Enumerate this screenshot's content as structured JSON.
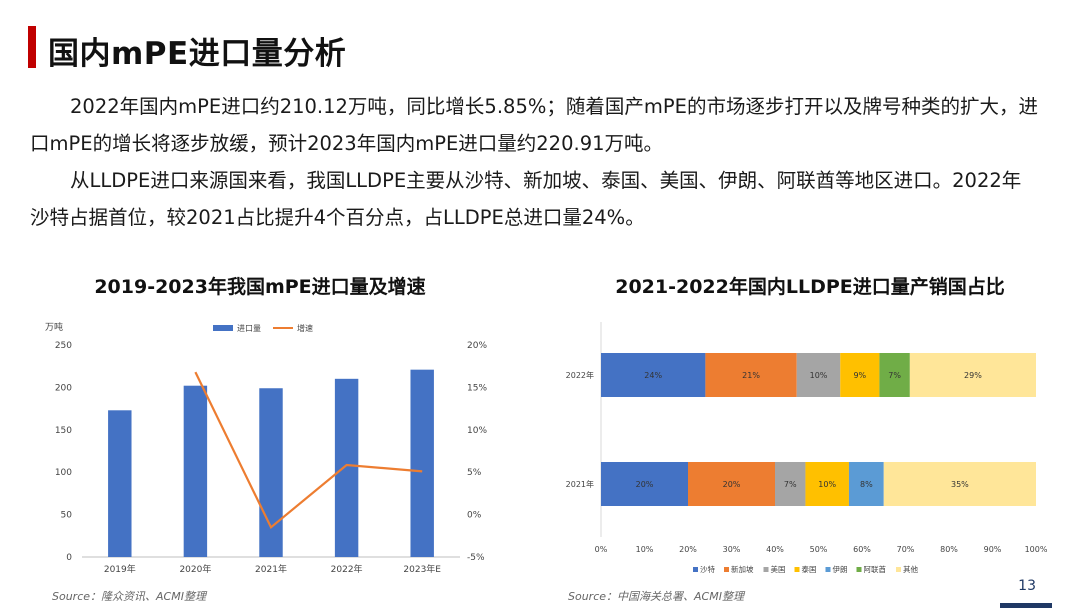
{
  "title": "国内mPE进口量分析",
  "paragraphs": [
    "2022年国内mPE进口约210.12万吨，同比增长5.85%；随着国产mPE的市场逐步打开以及牌号种类的扩大，进口mPE的增长将逐步放缓，预计2023年国内mPE进口量约220.91万吨。",
    "从LLDPE进口来源国来看，我国LLDPE主要从沙特、新加坡、泰国、美国、伊朗、阿联酋等地区进口。2022年沙特占据首位，较2021占比提升4个百分点，占LLDPE总进口量24%。"
  ],
  "chart_data": [
    {
      "type": "bar",
      "title": "2019-2023年我国mPE进口量及增速",
      "y_unit_label": "万吨",
      "categories": [
        "2019年",
        "2020年",
        "2021年",
        "2022年",
        "2023年E"
      ],
      "series": [
        {
          "name": "进口量",
          "type": "bar",
          "axis": "left",
          "values": [
            173,
            202,
            199,
            210.12,
            220.91
          ],
          "color": "#4472c4"
        },
        {
          "name": "增速",
          "type": "line",
          "axis": "right",
          "values": [
            null,
            16.8,
            -1.5,
            5.85,
            5.1
          ],
          "color": "#ed7d31"
        }
      ],
      "ylim": [
        0,
        250
      ],
      "yticks": [
        "0",
        "50",
        "100",
        "150",
        "200",
        "250"
      ],
      "y2lim": [
        -5,
        20
      ],
      "y2ticks": [
        "-5%",
        "0%",
        "5%",
        "10%",
        "15%",
        "20%"
      ],
      "legend_position": "top"
    },
    {
      "type": "bar",
      "orientation": "horizontal",
      "stacked": true,
      "title": "2021-2022年国内LLDPE进口量产销国占比",
      "categories": [
        "2022年",
        "2021年"
      ],
      "series": [
        {
          "name": "沙特",
          "values": [
            24,
            20
          ],
          "labels": [
            "24%",
            "20%"
          ],
          "color": "#4472c4"
        },
        {
          "name": "新加坡",
          "values": [
            21,
            20
          ],
          "labels": [
            "21%",
            "20%"
          ],
          "color": "#ed7d31"
        },
        {
          "name": "美国",
          "values": [
            10,
            7
          ],
          "labels": [
            "10%",
            "7%"
          ],
          "color": "#a5a5a5"
        },
        {
          "name": "泰国",
          "values": [
            9,
            10
          ],
          "labels": [
            "9%",
            "10%"
          ],
          "color": "#ffc000"
        },
        {
          "name": "伊朗",
          "values": [
            0,
            8
          ],
          "labels": [
            "",
            "8%"
          ],
          "color": "#5b9bd5"
        },
        {
          "name": "阿联酋",
          "values": [
            7,
            0
          ],
          "labels": [
            "7%",
            ""
          ],
          "color": "#70ad47"
        },
        {
          "name": "其他",
          "values": [
            29,
            35
          ],
          "labels": [
            "29%",
            "35%"
          ],
          "color": "#ffe699"
        }
      ],
      "xlim": [
        0,
        100
      ],
      "xticks": [
        "0%",
        "10%",
        "20%",
        "30%",
        "40%",
        "50%",
        "60%",
        "70%",
        "80%",
        "90%",
        "100%"
      ],
      "legend_position": "bottom"
    }
  ],
  "sources": [
    "Source：隆众资讯、ACMI整理",
    "Source：中国海关总署、ACMI整理"
  ],
  "page_number": "13"
}
